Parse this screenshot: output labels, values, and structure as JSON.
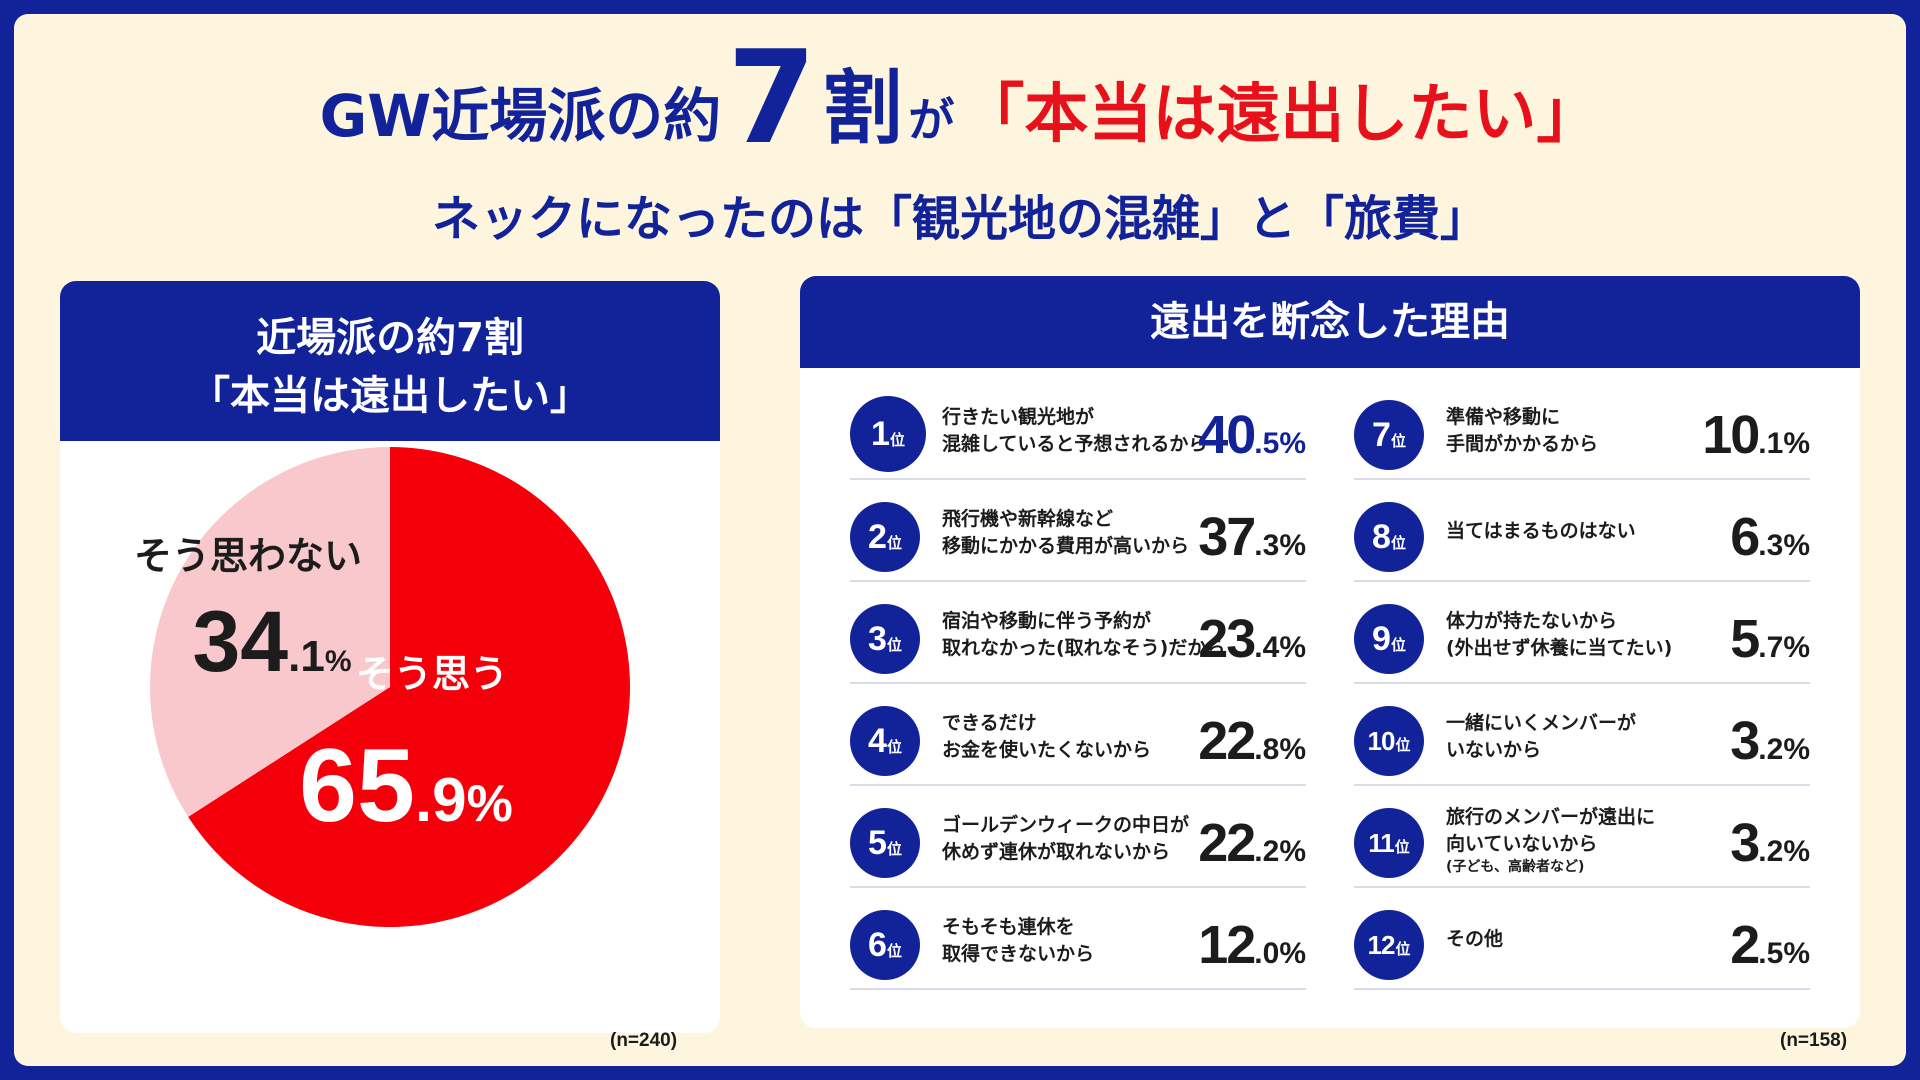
{
  "headline": {
    "line1_prefix": "GW近場派の約",
    "line1_seven": "7",
    "line1_wari": "割",
    "line1_ga": "が",
    "line1_quote": "「本当は遠出したい」",
    "line2": "ネックになったのは「観光地の混雑」と「旅費」"
  },
  "left_card": {
    "title_line1": "近場派の約7割",
    "title_line2": "「本当は遠出したい」",
    "n_note": "(n=240)"
  },
  "right_card": {
    "title": "遠出を断念した理由",
    "rank_suffix": "位",
    "n_note": "(n=158)"
  },
  "colors": {
    "navy": "#12239a",
    "red": "#e8101b",
    "pie_red": "#f5000a",
    "pie_pink": "#f9c8cc",
    "cream": "#fdf5de"
  },
  "chart_data": [
    {
      "type": "pie",
      "title": "近場派の約7割「本当は遠出したい」",
      "categories": [
        "そう思う",
        "そう思わない"
      ],
      "values": [
        65.9,
        34.1
      ],
      "value_labels": [
        {
          "int": "65",
          "dec": ".9",
          "unit": "%"
        },
        {
          "int": "34",
          "dec": ".1",
          "unit": "%"
        }
      ],
      "colors": [
        "#f5000a",
        "#f9c8cc"
      ],
      "n": 240
    },
    {
      "type": "table",
      "title": "遠出を断念した理由",
      "n": 158,
      "rows": [
        {
          "rank": "1",
          "reason": [
            "行きたい観光地が",
            "混雑していると予想されるから"
          ],
          "note": "",
          "value": 40.5,
          "int": "40",
          "dec": ".5%"
        },
        {
          "rank": "2",
          "reason": [
            "飛行機や新幹線など",
            "移動にかかる費用が高いから"
          ],
          "note": "",
          "value": 37.3,
          "int": "37",
          "dec": ".3%"
        },
        {
          "rank": "3",
          "reason": [
            "宿泊や移動に伴う予約が",
            "取れなかった(取れなそう)だから"
          ],
          "note": "",
          "value": 23.4,
          "int": "23",
          "dec": ".4%"
        },
        {
          "rank": "4",
          "reason": [
            "できるだけ",
            "お金を使いたくないから"
          ],
          "note": "",
          "value": 22.8,
          "int": "22",
          "dec": ".8%"
        },
        {
          "rank": "5",
          "reason": [
            "ゴールデンウィークの中日が",
            "休めず連休が取れないから"
          ],
          "note": "",
          "value": 22.2,
          "int": "22",
          "dec": ".2%"
        },
        {
          "rank": "6",
          "reason": [
            "そもそも連休を",
            "取得できないから"
          ],
          "note": "",
          "value": 12.0,
          "int": "12",
          "dec": ".0%"
        },
        {
          "rank": "7",
          "reason": [
            "準備や移動に",
            "手間がかかるから"
          ],
          "note": "",
          "value": 10.1,
          "int": "10",
          "dec": ".1%"
        },
        {
          "rank": "8",
          "reason": [
            "当てはまるものはない"
          ],
          "note": "",
          "value": 6.3,
          "int": "6",
          "dec": ".3%"
        },
        {
          "rank": "9",
          "reason": [
            "体力が持たないから",
            "(外出せず休養に当てたい)"
          ],
          "note": "",
          "value": 5.7,
          "int": "5",
          "dec": ".7%"
        },
        {
          "rank": "10",
          "reason": [
            "一緒にいくメンバーが",
            "いないから"
          ],
          "note": "",
          "value": 3.2,
          "int": "3",
          "dec": ".2%"
        },
        {
          "rank": "11",
          "reason": [
            "旅行のメンバーが遠出に",
            "向いていないから"
          ],
          "note": "(子ども、高齢者など)",
          "value": 3.2,
          "int": "3",
          "dec": ".2%"
        },
        {
          "rank": "12",
          "reason": [
            "その他"
          ],
          "note": "",
          "value": 2.5,
          "int": "2",
          "dec": ".5%"
        }
      ]
    }
  ]
}
